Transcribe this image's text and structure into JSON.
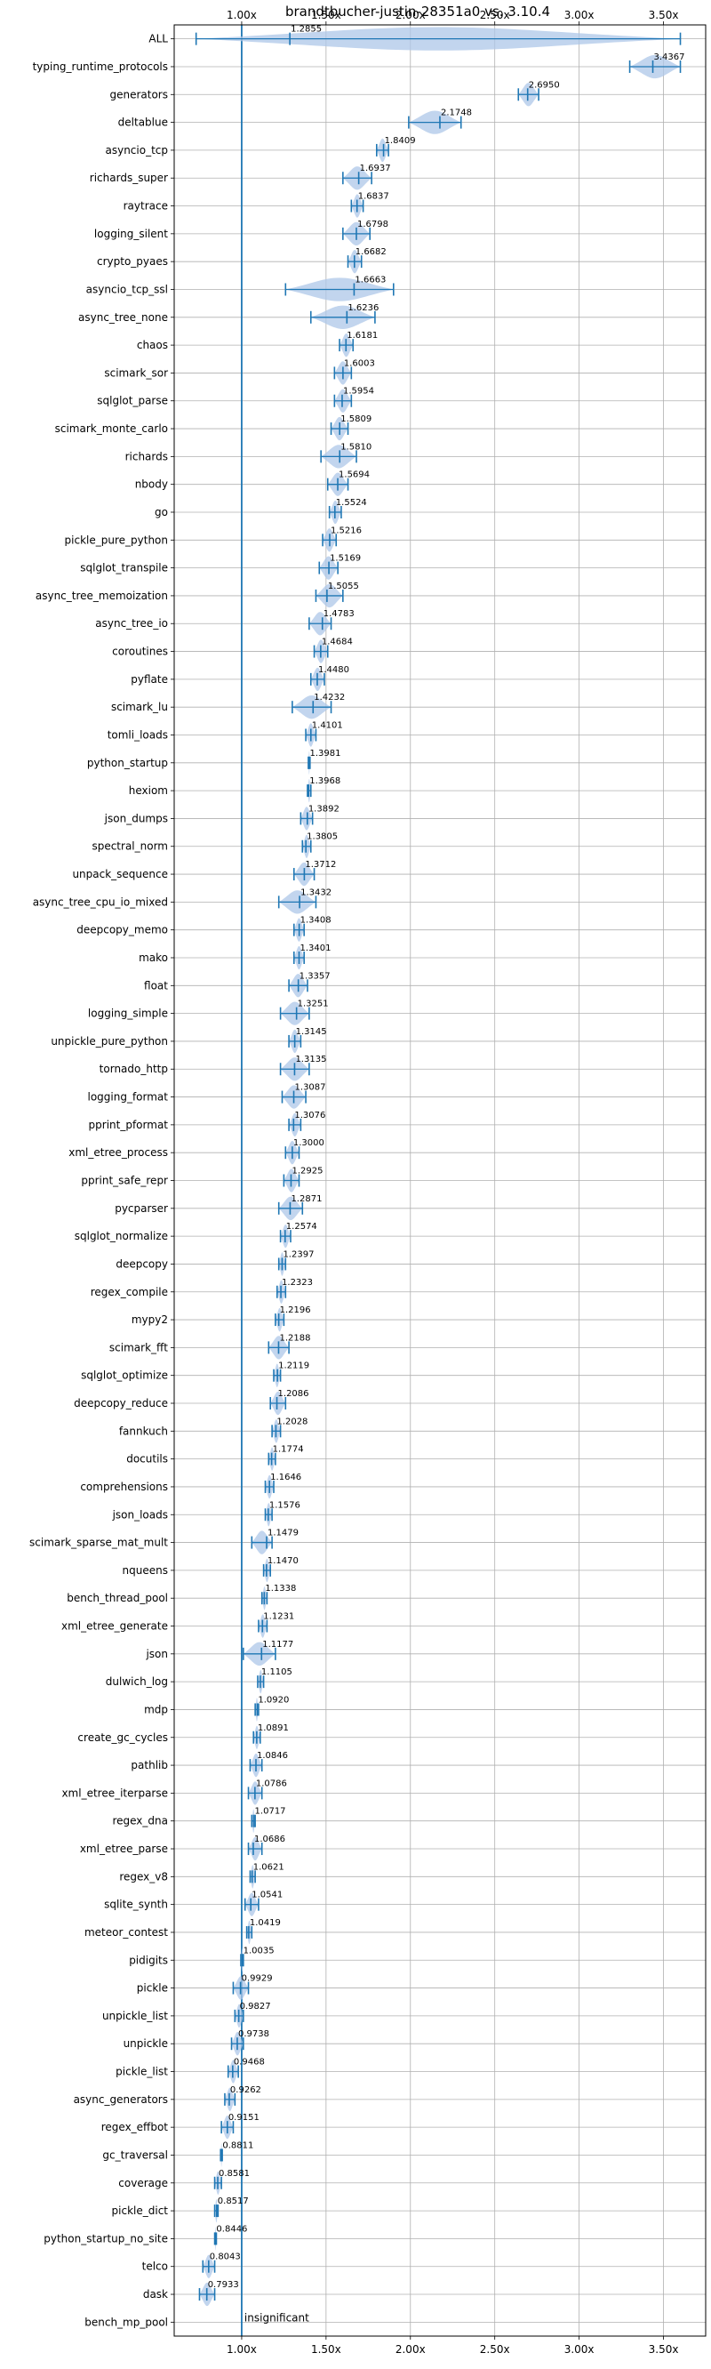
{
  "chart_data": {
    "type": "violin",
    "title": "brandtbucher-justin-28351a0 vs. 3.10.4",
    "xlabel": "",
    "ylabel": "",
    "xlim": [
      0.6,
      3.75
    ],
    "x_ticks": [
      1.0,
      1.5,
      2.0,
      2.5,
      3.0,
      3.5
    ],
    "x_tick_labels": [
      "1.00x",
      "1.50x",
      "2.00x",
      "2.50x",
      "3.00x",
      "3.50x"
    ],
    "reference_line": 1.0,
    "grid": true,
    "color": "#1f77b4",
    "violin_color": "#aec7e8",
    "categories": [
      "ALL",
      "typing_runtime_protocols",
      "generators",
      "deltablue",
      "asyncio_tcp",
      "richards_super",
      "raytrace",
      "logging_silent",
      "crypto_pyaes",
      "asyncio_tcp_ssl",
      "async_tree_none",
      "chaos",
      "scimark_sor",
      "sqlglot_parse",
      "scimark_monte_carlo",
      "richards",
      "nbody",
      "go",
      "pickle_pure_python",
      "sqlglot_transpile",
      "async_tree_memoization",
      "async_tree_io",
      "coroutines",
      "pyflate",
      "scimark_lu",
      "tomli_loads",
      "python_startup",
      "hexiom",
      "json_dumps",
      "spectral_norm",
      "unpack_sequence",
      "async_tree_cpu_io_mixed",
      "deepcopy_memo",
      "mako",
      "float",
      "logging_simple",
      "unpickle_pure_python",
      "tornado_http",
      "logging_format",
      "pprint_pformat",
      "xml_etree_process",
      "pprint_safe_repr",
      "pycparser",
      "sqlglot_normalize",
      "deepcopy",
      "regex_compile",
      "mypy2",
      "scimark_fft",
      "sqlglot_optimize",
      "deepcopy_reduce",
      "fannkuch",
      "docutils",
      "comprehensions",
      "json_loads",
      "scimark_sparse_mat_mult",
      "nqueens",
      "bench_thread_pool",
      "xml_etree_generate",
      "json",
      "dulwich_log",
      "mdp",
      "create_gc_cycles",
      "pathlib",
      "xml_etree_iterparse",
      "regex_dna",
      "xml_etree_parse",
      "regex_v8",
      "sqlite_synth",
      "meteor_contest",
      "pidigits",
      "pickle",
      "unpickle_list",
      "unpickle",
      "pickle_list",
      "async_generators",
      "regex_effbot",
      "gc_traversal",
      "coverage",
      "pickle_dict",
      "python_startup_no_site",
      "telco",
      "dask",
      "bench_mp_pool"
    ],
    "values": [
      1.2855,
      3.4367,
      2.695,
      2.1748,
      1.8409,
      1.6937,
      1.6837,
      1.6798,
      1.6682,
      1.6663,
      1.6236,
      1.6181,
      1.6003,
      1.5954,
      1.5809,
      1.581,
      1.5694,
      1.5524,
      1.5216,
      1.5169,
      1.5055,
      1.4783,
      1.4684,
      1.448,
      1.4232,
      1.4101,
      1.3981,
      1.3968,
      1.3892,
      1.3805,
      1.3712,
      1.3432,
      1.3408,
      1.3401,
      1.3357,
      1.3251,
      1.3145,
      1.3135,
      1.3087,
      1.3076,
      1.3,
      1.2925,
      1.2871,
      1.2574,
      1.2397,
      1.2323,
      1.2196,
      1.2188,
      1.2119,
      1.2086,
      1.2028,
      1.1774,
      1.1646,
      1.1576,
      1.1479,
      1.147,
      1.1338,
      1.1231,
      1.1177,
      1.1105,
      1.092,
      1.0891,
      1.0846,
      1.0786,
      1.0717,
      1.0686,
      1.0621,
      1.0541,
      1.0419,
      1.0035,
      0.9929,
      0.9827,
      0.9738,
      0.9468,
      0.9262,
      0.9151,
      0.8811,
      0.8581,
      0.8517,
      0.8446,
      0.8043,
      0.7933,
      null
    ],
    "value_labels": [
      "1.2855",
      "3.4367",
      "2.6950",
      "2.1748",
      "1.8409",
      "1.6937",
      "1.6837",
      "1.6798",
      "1.6682",
      "1.6663",
      "1.6236",
      "1.6181",
      "1.6003",
      "1.5954",
      "1.5809",
      "1.5810",
      "1.5694",
      "1.5524",
      "1.5216",
      "1.5169",
      "1.5055",
      "1.4783",
      "1.4684",
      "1.4480",
      "1.4232",
      "1.4101",
      "1.3981",
      "1.3968",
      "1.3892",
      "1.3805",
      "1.3712",
      "1.3432",
      "1.3408",
      "1.3401",
      "1.3357",
      "1.3251",
      "1.3145",
      "1.3135",
      "1.3087",
      "1.3076",
      "1.3000",
      "1.2925",
      "1.2871",
      "1.2574",
      "1.2397",
      "1.2323",
      "1.2196",
      "1.2188",
      "1.2119",
      "1.2086",
      "1.2028",
      "1.1774",
      "1.1646",
      "1.1576",
      "1.1479",
      "1.1470",
      "1.1338",
      "1.1231",
      "1.1177",
      "1.1105",
      "1.0920",
      "1.0891",
      "1.0846",
      "1.0786",
      "1.0717",
      "1.0686",
      "1.0621",
      "1.0541",
      "1.0419",
      "1.0035",
      "0.9929",
      "0.9827",
      "0.9738",
      "0.9468",
      "0.9262",
      "0.9151",
      "0.8811",
      "0.8581",
      "0.8517",
      "0.8446",
      "0.8043",
      "0.7933",
      "insignificant"
    ],
    "ranges": [
      [
        0.73,
        3.6
      ],
      [
        3.3,
        3.6
      ],
      [
        2.64,
        2.76
      ],
      [
        1.99,
        2.3
      ],
      [
        1.8,
        1.87
      ],
      [
        1.6,
        1.77
      ],
      [
        1.65,
        1.72
      ],
      [
        1.6,
        1.76
      ],
      [
        1.63,
        1.71
      ],
      [
        1.26,
        1.9
      ],
      [
        1.41,
        1.79
      ],
      [
        1.58,
        1.66
      ],
      [
        1.55,
        1.65
      ],
      [
        1.55,
        1.65
      ],
      [
        1.53,
        1.63
      ],
      [
        1.47,
        1.68
      ],
      [
        1.51,
        1.63
      ],
      [
        1.52,
        1.59
      ],
      [
        1.48,
        1.56
      ],
      [
        1.46,
        1.57
      ],
      [
        1.44,
        1.6
      ],
      [
        1.4,
        1.53
      ],
      [
        1.43,
        1.51
      ],
      [
        1.41,
        1.49
      ],
      [
        1.3,
        1.53
      ],
      [
        1.38,
        1.44
      ],
      [
        1.395,
        1.405
      ],
      [
        1.39,
        1.41
      ],
      [
        1.35,
        1.42
      ],
      [
        1.36,
        1.41
      ],
      [
        1.31,
        1.43
      ],
      [
        1.22,
        1.44
      ],
      [
        1.31,
        1.37
      ],
      [
        1.31,
        1.37
      ],
      [
        1.28,
        1.39
      ],
      [
        1.23,
        1.4
      ],
      [
        1.28,
        1.35
      ],
      [
        1.23,
        1.4
      ],
      [
        1.24,
        1.38
      ],
      [
        1.28,
        1.35
      ],
      [
        1.26,
        1.34
      ],
      [
        1.25,
        1.34
      ],
      [
        1.22,
        1.36
      ],
      [
        1.23,
        1.29
      ],
      [
        1.22,
        1.26
      ],
      [
        1.21,
        1.26
      ],
      [
        1.2,
        1.25
      ],
      [
        1.16,
        1.28
      ],
      [
        1.19,
        1.23
      ],
      [
        1.17,
        1.26
      ],
      [
        1.18,
        1.23
      ],
      [
        1.16,
        1.2
      ],
      [
        1.14,
        1.19
      ],
      [
        1.14,
        1.18
      ],
      [
        1.06,
        1.18
      ],
      [
        1.13,
        1.17
      ],
      [
        1.12,
        1.15
      ],
      [
        1.1,
        1.15
      ],
      [
        1.01,
        1.2
      ],
      [
        1.095,
        1.13
      ],
      [
        1.08,
        1.1
      ],
      [
        1.07,
        1.11
      ],
      [
        1.05,
        1.12
      ],
      [
        1.04,
        1.12
      ],
      [
        1.06,
        1.08
      ],
      [
        1.04,
        1.12
      ],
      [
        1.05,
        1.08
      ],
      [
        1.02,
        1.1
      ],
      [
        1.03,
        1.06
      ],
      [
        0.995,
        1.01
      ],
      [
        0.95,
        1.04
      ],
      [
        0.96,
        1.01
      ],
      [
        0.94,
        1.01
      ],
      [
        0.92,
        0.98
      ],
      [
        0.9,
        0.96
      ],
      [
        0.88,
        0.95
      ],
      [
        0.875,
        0.885
      ],
      [
        0.84,
        0.88
      ],
      [
        0.84,
        0.86
      ],
      [
        0.84,
        0.85
      ],
      [
        0.77,
        0.84
      ],
      [
        0.75,
        0.84
      ],
      null
    ]
  }
}
